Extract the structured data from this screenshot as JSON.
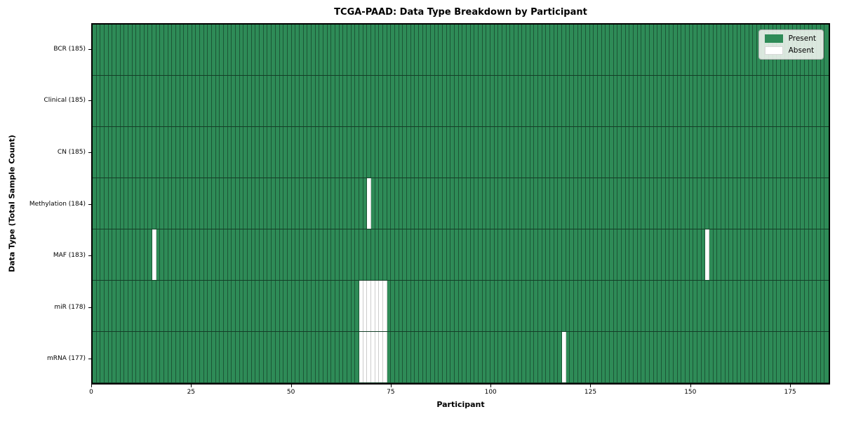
{
  "chart_data": {
    "type": "heatmap",
    "title": "TCGA-PAAD: Data Type Breakdown by Participant",
    "xlabel": "Participant",
    "ylabel": "Data Type (Total Sample Count)",
    "xlim": [
      0,
      185
    ],
    "n_participants": 185,
    "x_ticks": [
      "0",
      "25",
      "50",
      "75",
      "100",
      "125",
      "150",
      "175"
    ],
    "x_tick_values": [
      0,
      25,
      50,
      75,
      100,
      125,
      150,
      175
    ],
    "grid": "cell-borders",
    "legend_position": "upper-right",
    "legend": {
      "present_label": "Present",
      "absent_label": "Absent"
    },
    "colors": {
      "present": "#2e8b57",
      "absent": "#ffffff",
      "background": "#ffffff"
    },
    "rows": [
      {
        "label": "BCR (185)",
        "data_type": "BCR",
        "total": 185,
        "absent_participants": []
      },
      {
        "label": "Clinical (185)",
        "data_type": "Clinical",
        "total": 185,
        "absent_participants": []
      },
      {
        "label": "CN (185)",
        "data_type": "CN",
        "total": 185,
        "absent_participants": []
      },
      {
        "label": "Methylation (184)",
        "data_type": "Methylation",
        "total": 184,
        "absent_participants": [
          69
        ]
      },
      {
        "label": "MAF (183)",
        "data_type": "MAF",
        "total": 183,
        "absent_participants": [
          15,
          154
        ]
      },
      {
        "label": "miR (178)",
        "data_type": "miR",
        "total": 178,
        "absent_participants": [
          67,
          68,
          69,
          70,
          71,
          72,
          73
        ]
      },
      {
        "label": "mRNA (177)",
        "data_type": "mRNA",
        "total": 177,
        "absent_participants": [
          67,
          68,
          69,
          70,
          71,
          72,
          73,
          118
        ]
      }
    ]
  }
}
